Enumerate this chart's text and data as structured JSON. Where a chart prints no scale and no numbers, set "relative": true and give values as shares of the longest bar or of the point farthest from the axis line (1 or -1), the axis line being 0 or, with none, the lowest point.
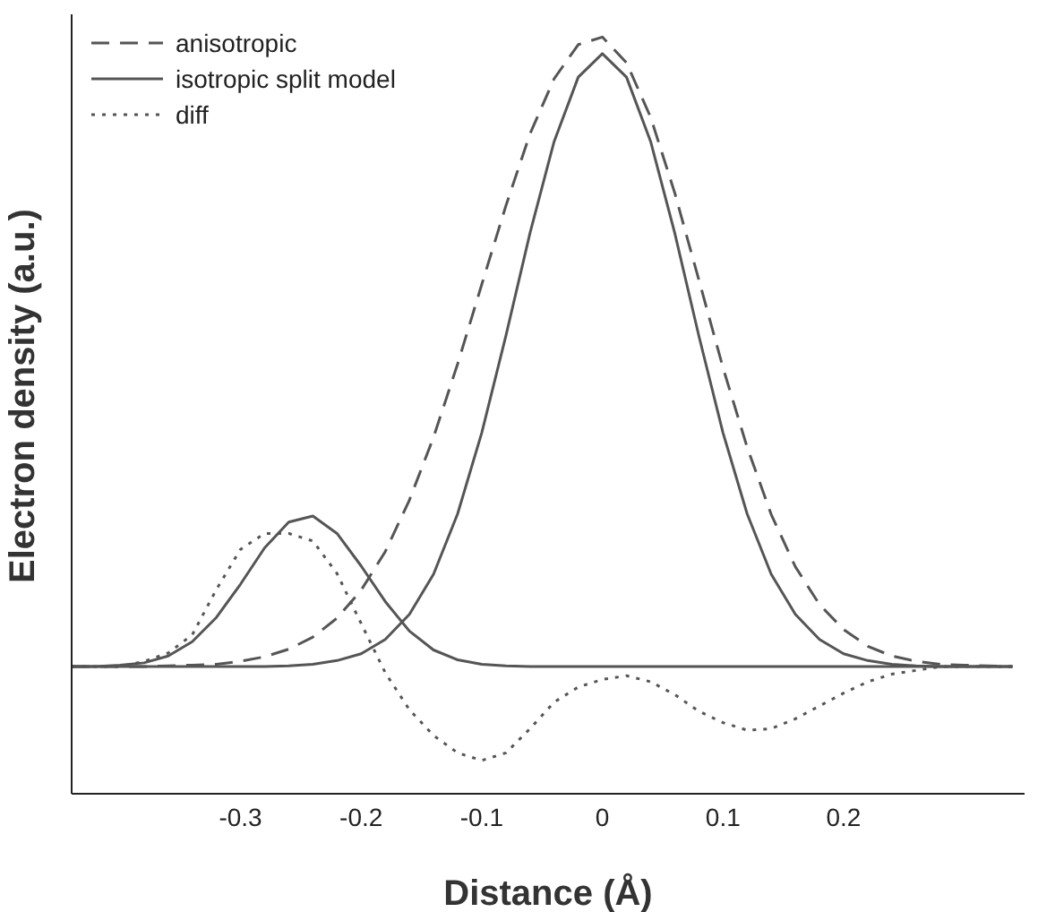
{
  "chart_data": {
    "type": "line",
    "xlabel": "Distance (Å)",
    "ylabel": "Electron density (a.u.)",
    "relative": true,
    "xlim": [
      -0.44,
      0.35
    ],
    "xticks": [
      -0.3,
      -0.2,
      -0.1,
      0,
      0.1,
      0.2
    ],
    "legend": "top left",
    "grid": false,
    "marker": "none",
    "x": [
      -0.44,
      -0.42,
      -0.4,
      -0.38,
      -0.36,
      -0.34,
      -0.32,
      -0.3,
      -0.28,
      -0.26,
      -0.24,
      -0.22,
      -0.2,
      -0.18,
      -0.16,
      -0.14,
      -0.12,
      -0.1,
      -0.08,
      -0.06,
      -0.04,
      -0.02,
      0,
      0.02,
      0.04,
      0.06,
      0.08,
      0.1,
      0.12,
      0.14,
      0.16,
      0.18,
      0.2,
      0.22,
      0.24,
      0.26,
      0.28,
      0.3,
      0.32,
      0.34
    ],
    "series": [
      {
        "name": "anisotropic",
        "color": "#555555",
        "line_style": "dashed",
        "values": [
          0.168,
          0.168,
          0.168,
          0.168,
          0.169,
          0.17,
          0.171,
          0.175,
          0.181,
          0.191,
          0.207,
          0.232,
          0.269,
          0.32,
          0.388,
          0.471,
          0.568,
          0.673,
          0.777,
          0.872,
          0.945,
          0.99,
          1,
          0.966,
          0.894,
          0.794,
          0.679,
          0.563,
          0.458,
          0.369,
          0.3,
          0.25,
          0.217,
          0.195,
          0.182,
          0.175,
          0.171,
          0.17,
          0.169,
          0.168
        ]
      },
      {
        "name": "isotropic split model",
        "color": "#555555",
        "line_style": "solid",
        "values": [
          0.168,
          0.168,
          0.168,
          0.168,
          0.168,
          0.168,
          0.168,
          0.168,
          0.168,
          0.169,
          0.171,
          0.176,
          0.185,
          0.204,
          0.237,
          0.29,
          0.37,
          0.477,
          0.605,
          0.741,
          0.862,
          0.947,
          0.978,
          0.947,
          0.862,
          0.741,
          0.605,
          0.477,
          0.37,
          0.29,
          0.237,
          0.204,
          0.185,
          0.176,
          0.171,
          0.169,
          0.168,
          0.168,
          0.168,
          0.168
        ]
      },
      {
        "color": "#555555",
        "line_style": "solid",
        "values": [
          0.168,
          0.168,
          0.17,
          0.173,
          0.182,
          0.201,
          0.233,
          0.277,
          0.325,
          0.359,
          0.367,
          0.344,
          0.301,
          0.254,
          0.215,
          0.19,
          0.177,
          0.171,
          0.169,
          0.168,
          0.168,
          0.168,
          0.168,
          0.168,
          0.168,
          0.168,
          0.168,
          0.168,
          0.168,
          0.168,
          0.168,
          0.168,
          0.168,
          0.168,
          0.168,
          0.168,
          0.168,
          0.168,
          0.168,
          0.168
        ]
      },
      {
        "name": "diff",
        "color": "#555555",
        "line_style": "dotted",
        "values": [
          0.168,
          0.168,
          0.168,
          0.175,
          0.186,
          0.21,
          0.27,
          0.323,
          0.344,
          0.344,
          0.334,
          0.291,
          0.225,
          0.16,
          0.111,
          0.077,
          0.054,
          0.044,
          0.054,
          0.086,
          0.121,
          0.141,
          0.151,
          0.156,
          0.148,
          0.131,
          0.109,
          0.094,
          0.084,
          0.086,
          0.099,
          0.116,
          0.133,
          0.148,
          0.158,
          0.163,
          0.168,
          0.168,
          0.168,
          0.168
        ]
      }
    ]
  }
}
